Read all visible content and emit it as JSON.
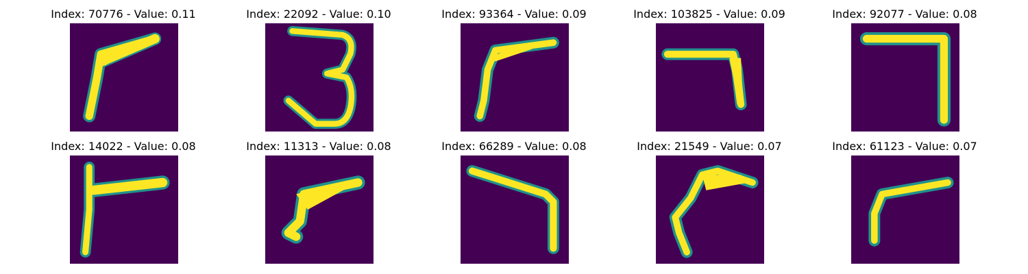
{
  "figure": {
    "background": "#ffffff",
    "colormap": "viridis",
    "colors": {
      "background_cell": "#440154",
      "mid_cell": "#21918c",
      "bright_cell": "#fde725",
      "light_cell": "#b5de2b"
    }
  },
  "tiles": [
    {
      "title": "Index: 70776 - Value: 0.11",
      "content": "handwritten digit image (7-like)"
    },
    {
      "title": "Index: 22092 - Value: 0.10",
      "content": "handwritten digit image (3)"
    },
    {
      "title": "Index: 93364 - Value: 0.09",
      "content": "handwritten digit image (7-like)"
    },
    {
      "title": "Index: 103825 - Value: 0.09",
      "content": "handwritten digit image (7)"
    },
    {
      "title": "Index: 92077 - Value: 0.08",
      "content": "handwritten digit image (7)"
    },
    {
      "title": "Index: 14022 - Value: 0.08",
      "content": "handwritten digit image (7-like)"
    },
    {
      "title": "Index: 11313 - Value: 0.08",
      "content": "handwritten digit image (7-like)"
    },
    {
      "title": "Index: 66289 - Value: 0.08",
      "content": "handwritten digit image (7)"
    },
    {
      "title": "Index: 21549 - Value: 0.07",
      "content": "handwritten digit image (7-like)"
    },
    {
      "title": "Index: 61123 - Value: 0.07",
      "content": "handwritten digit image (7-like)"
    }
  ]
}
